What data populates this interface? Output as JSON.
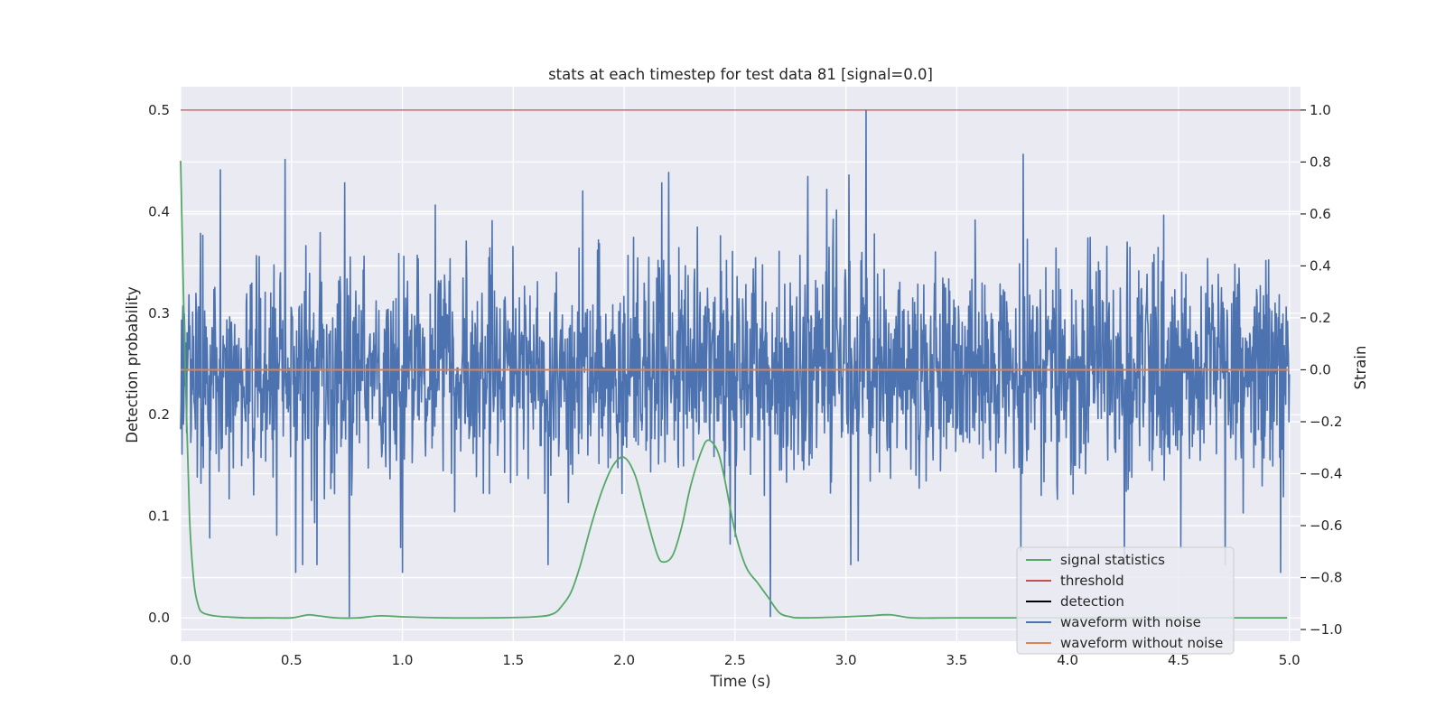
{
  "chart_data": {
    "type": "line",
    "title": "stats at each timestep for test data 81 [signal=0.0]",
    "xlabel": "Time (s)",
    "ylabel_left": "Detection probability",
    "ylabel_right": "Strain",
    "xlim": [
      0.0,
      5.05
    ],
    "ylim_left": [
      -0.023,
      0.523
    ],
    "ylim_right": [
      -1.045,
      1.09
    ],
    "x_ticks": [
      0.0,
      0.5,
      1.0,
      1.5,
      2.0,
      2.5,
      3.0,
      3.5,
      4.0,
      4.5,
      5.0
    ],
    "x_tick_labels": [
      "0.0",
      "0.5",
      "1.0",
      "1.5",
      "2.0",
      "2.5",
      "3.0",
      "3.5",
      "4.0",
      "4.5",
      "5.0"
    ],
    "y_left_ticks": [
      0.0,
      0.1,
      0.2,
      0.3,
      0.4,
      0.5
    ],
    "y_left_tick_labels": [
      "0.0",
      "0.1",
      "0.2",
      "0.3",
      "0.4",
      "0.5"
    ],
    "y_right_ticks": [
      -1.0,
      -0.8,
      -0.6,
      -0.4,
      -0.2,
      0.0,
      0.2,
      0.4,
      0.6,
      0.8,
      1.0
    ],
    "y_right_tick_labels": [
      "−1.0",
      "−0.8",
      "−0.6",
      "−0.4",
      "−0.2",
      "0.0",
      "0.2",
      "0.4",
      "0.6",
      "0.8",
      "1.0"
    ],
    "grid": true,
    "legend_position": "lower-right",
    "series": [
      {
        "name": "signal statistics",
        "color": "#55a868",
        "axis": "left",
        "x": [
          0.0,
          0.02,
          0.04,
          0.06,
          0.08,
          0.1,
          0.15,
          0.2,
          0.3,
          0.4,
          0.5,
          0.55,
          0.58,
          0.62,
          0.7,
          0.8,
          0.9,
          1.0,
          1.2,
          1.4,
          1.6,
          1.68,
          1.72,
          1.76,
          1.8,
          1.85,
          1.9,
          1.95,
          2.0,
          2.05,
          2.1,
          2.15,
          2.18,
          2.22,
          2.26,
          2.3,
          2.35,
          2.38,
          2.42,
          2.45,
          2.5,
          2.55,
          2.6,
          2.65,
          2.7,
          2.75,
          2.8,
          3.0,
          3.1,
          3.2,
          3.3,
          3.5,
          4.0,
          4.5,
          4.99
        ],
        "y": [
          0.45,
          0.25,
          0.1,
          0.035,
          0.012,
          0.005,
          0.002,
          0.001,
          0.0,
          0.0,
          0.0,
          0.002,
          0.003,
          0.002,
          0.0,
          0.0,
          0.002,
          0.001,
          0.0,
          0.0,
          0.001,
          0.004,
          0.012,
          0.025,
          0.05,
          0.09,
          0.125,
          0.15,
          0.158,
          0.14,
          0.1,
          0.062,
          0.055,
          0.062,
          0.09,
          0.13,
          0.165,
          0.175,
          0.165,
          0.14,
          0.085,
          0.05,
          0.035,
          0.02,
          0.005,
          0.001,
          0.0,
          0.001,
          0.002,
          0.003,
          0.0,
          0.0,
          0.0,
          0.0,
          0.0
        ]
      },
      {
        "name": "threshold",
        "color": "#c44e52",
        "axis": "left",
        "x": [
          0.0,
          5.05
        ],
        "y": [
          0.5,
          0.5
        ]
      },
      {
        "name": "detection",
        "color": "#000000",
        "axis": "left",
        "x": [],
        "y": []
      },
      {
        "name": "waveform with noise",
        "color": "#4c72b0",
        "axis": "right",
        "x_range": [
          0.0,
          5.0
        ],
        "n_points": 2400,
        "envelope": [
          -0.6,
          0.6
        ],
        "extremes": [
          {
            "x": 0.18,
            "y": 0.77
          },
          {
            "x": 0.47,
            "y": 0.81
          },
          {
            "x": 0.74,
            "y": 0.72
          },
          {
            "x": 0.76,
            "y": -0.95
          },
          {
            "x": 1.0,
            "y": -0.78
          },
          {
            "x": 2.17,
            "y": 0.72
          },
          {
            "x": 2.2,
            "y": 0.76
          },
          {
            "x": 3.09,
            "y": 1.0
          },
          {
            "x": 3.8,
            "y": 0.83
          },
          {
            "x": 2.66,
            "y": -0.95
          },
          {
            "x": 4.96,
            "y": -0.78
          },
          {
            "x": 0.52,
            "y": -0.78
          }
        ]
      },
      {
        "name": "waveform without noise",
        "color": "#dd8452",
        "axis": "right",
        "x": [
          0.0,
          5.0
        ],
        "y": [
          0.0,
          0.0
        ]
      }
    ]
  }
}
